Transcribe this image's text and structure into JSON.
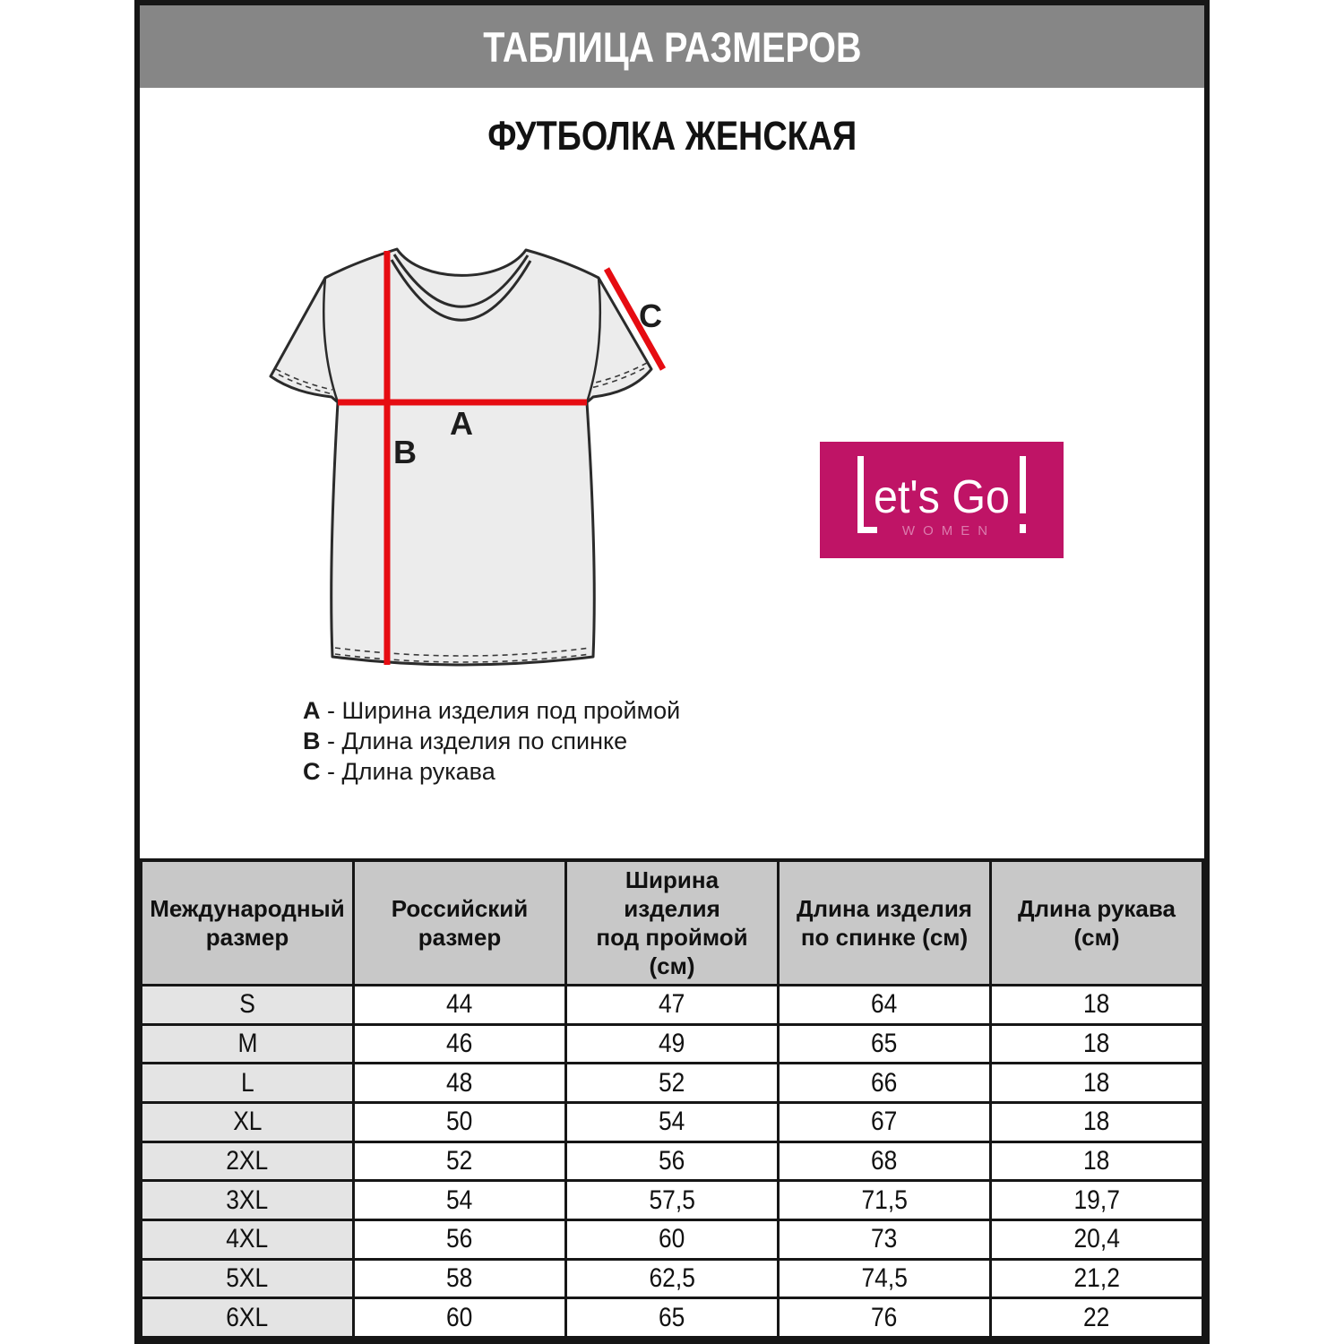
{
  "header": {
    "title": "ТАБЛИЦА РАЗМЕРОВ"
  },
  "product": {
    "title": "ФУТБОЛКА ЖЕНСКАЯ"
  },
  "diagram": {
    "marks": {
      "a": "A",
      "b": "B",
      "c": "C"
    },
    "legend": [
      {
        "key": "A",
        "text": "Ширина изделия под проймой"
      },
      {
        "key": "B",
        "text": "Длина изделия по спинке"
      },
      {
        "key": "C",
        "text": "Длина рукава"
      }
    ]
  },
  "logo": {
    "brand_left": "L",
    "brand_text": "et's Go",
    "brand_bang": "!",
    "sub": "WOMEN"
  },
  "table": {
    "columns": [
      "Международный\nразмер",
      "Российский\nразмер",
      "Ширина изделия\nпод проймой (см)",
      "Длина изделия\nпо спинке (см)",
      "Длина рукава (см)"
    ],
    "rows": [
      [
        "S",
        "44",
        "47",
        "64",
        "18"
      ],
      [
        "M",
        "46",
        "49",
        "65",
        "18"
      ],
      [
        "L",
        "48",
        "52",
        "66",
        "18"
      ],
      [
        "XL",
        "50",
        "54",
        "67",
        "18"
      ],
      [
        "2XL",
        "52",
        "56",
        "68",
        "18"
      ],
      [
        "3XL",
        "54",
        "57,5",
        "71,5",
        "19,7"
      ],
      [
        "4XL",
        "56",
        "60",
        "73",
        "20,4"
      ],
      [
        "5XL",
        "58",
        "62,5",
        "74,5",
        "21,2"
      ],
      [
        "6XL",
        "60",
        "65",
        "76",
        "22"
      ]
    ]
  },
  "colors": {
    "frame_border": "#161616",
    "header_bar_bg": "#868686",
    "table_header_bg": "#c8c8c8",
    "size_column_bg": "#e4e4e4",
    "measure_line_red": "#e60c12",
    "shirt_fill": "#ececec",
    "shirt_outline": "#2b2b2b",
    "logo_bg": "#bf1466",
    "logo_sub_pink": "#db7cad"
  }
}
